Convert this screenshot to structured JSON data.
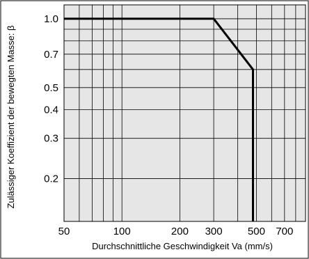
{
  "corner_label": "",
  "chart_data": {
    "type": "line",
    "xlabel": "Durchschnittliche Geschwindigkeit Va (mm/s)",
    "ylabel": "Zulässiger Koeffizient der bewegten Masse: β",
    "x_scale": "log",
    "y_scale": "log",
    "xlim": [
      50,
      900
    ],
    "ylim": [
      0.13,
      1.15
    ],
    "grid": true,
    "x_ticks": [
      50,
      100,
      200,
      300,
      500,
      700
    ],
    "x_tick_labels": [
      "50",
      "100",
      "200",
      "300",
      "500",
      "700"
    ],
    "x_gridlines": [
      50,
      60,
      70,
      80,
      90,
      100,
      200,
      300,
      400,
      500,
      600,
      700,
      800,
      900
    ],
    "y_ticks": [
      1.0,
      0.7,
      0.5,
      0.4,
      0.3,
      0.2
    ],
    "y_tick_labels": [
      "1.0",
      "0.7",
      "0.5",
      "0.4",
      "0.3",
      "0.2"
    ],
    "y_gridlines": [
      0.2,
      0.3,
      0.4,
      0.5,
      0.6,
      0.7,
      0.8,
      0.9,
      1.0
    ],
    "series": [
      {
        "x": [
          50,
          300,
          480,
          480
        ],
        "y": [
          1.0,
          1.0,
          0.6,
          0.13
        ]
      }
    ],
    "colors": {
      "background": "#ffffff",
      "plot_area": "#e6e6e6",
      "grid": "#000000",
      "line": "#000000"
    }
  }
}
